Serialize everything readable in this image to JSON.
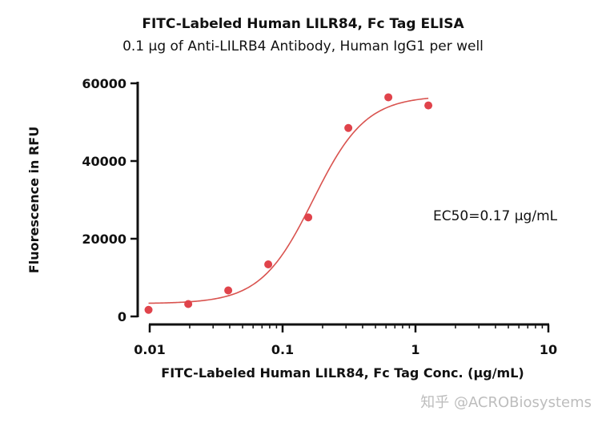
{
  "title": "FITC-Labeled Human LILR84, Fc Tag ELISA",
  "subtitle": "0.1 µg of Anti-LILRB4 Antibody, Human IgG1 per well",
  "watermark": "知乎 @ACROBiosystems",
  "chart_data": {
    "type": "scatter",
    "title": "FITC-Labeled Human LILR84, Fc Tag ELISA",
    "subtitle": "0.1 µg of Anti-LILRB4 Antibody, Human IgG1 per well",
    "xlabel": "FITC-Labeled Human LILR84, Fc Tag Conc. (µg/mL)",
    "ylabel": "Fluorescence in RFU",
    "x_scale": "log",
    "xlim": [
      0.01,
      10
    ],
    "ylim": [
      0,
      60000
    ],
    "x_ticks": [
      0.01,
      0.1,
      1,
      10
    ],
    "x_tick_labels": [
      "0.01",
      "0.1",
      "1",
      "10"
    ],
    "y_ticks": [
      0,
      20000,
      40000,
      60000
    ],
    "y_tick_labels": [
      "0",
      "20000",
      "40000",
      "60000"
    ],
    "grid": false,
    "legend": "none",
    "annotation": "EC50=0.17 µg/mL",
    "point_color": "#e0434b",
    "line_color": "#d9534f",
    "series": [
      {
        "x": [
          0.0098,
          0.0195,
          0.039,
          0.078,
          0.156,
          0.3125,
          0.625,
          1.25
        ],
        "values": [
          1700,
          3200,
          6700,
          13400,
          25500,
          48500,
          56400,
          54300
        ]
      }
    ],
    "fit": {
      "model": "4PL",
      "bottom": 3300,
      "top": 56800,
      "ec50": 0.17,
      "hill": 2.2
    }
  }
}
